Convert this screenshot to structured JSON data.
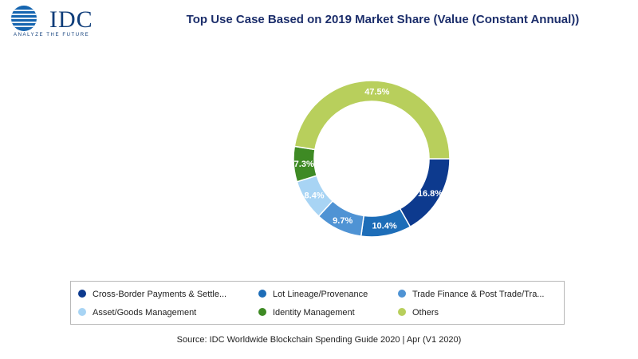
{
  "header": {
    "logo_text": "IDC",
    "logo_tagline": "ANALYZE THE FUTURE"
  },
  "chart_data": {
    "type": "pie",
    "title": "Top Use Case Based on 2019 Market Share (Value (Constant Annual))",
    "categories": [
      "Cross-Border Payments & Settle...",
      "Lot Lineage/Provenance",
      "Trade Finance & Post Trade/Tra...",
      "Asset/Goods Management",
      "Identity Management",
      "Others"
    ],
    "values": [
      16.8,
      10.4,
      9.7,
      8.4,
      7.3,
      47.5
    ],
    "data_labels": [
      "16.8%",
      "10.4%",
      "9.7%",
      "8.4%",
      "7.3%",
      "47.5%"
    ],
    "colors": [
      "#0d3a8e",
      "#1d6db8",
      "#4f93d4",
      "#a8d4f4",
      "#3e8a24",
      "#b8cf5c"
    ],
    "donut": true,
    "start_angle_deg": 90,
    "direction": "clockwise",
    "legend_placement": "bottom"
  },
  "source": "Source: IDC Worldwide Blockchain Spending Guide 2020 | Apr (V1 2020)"
}
